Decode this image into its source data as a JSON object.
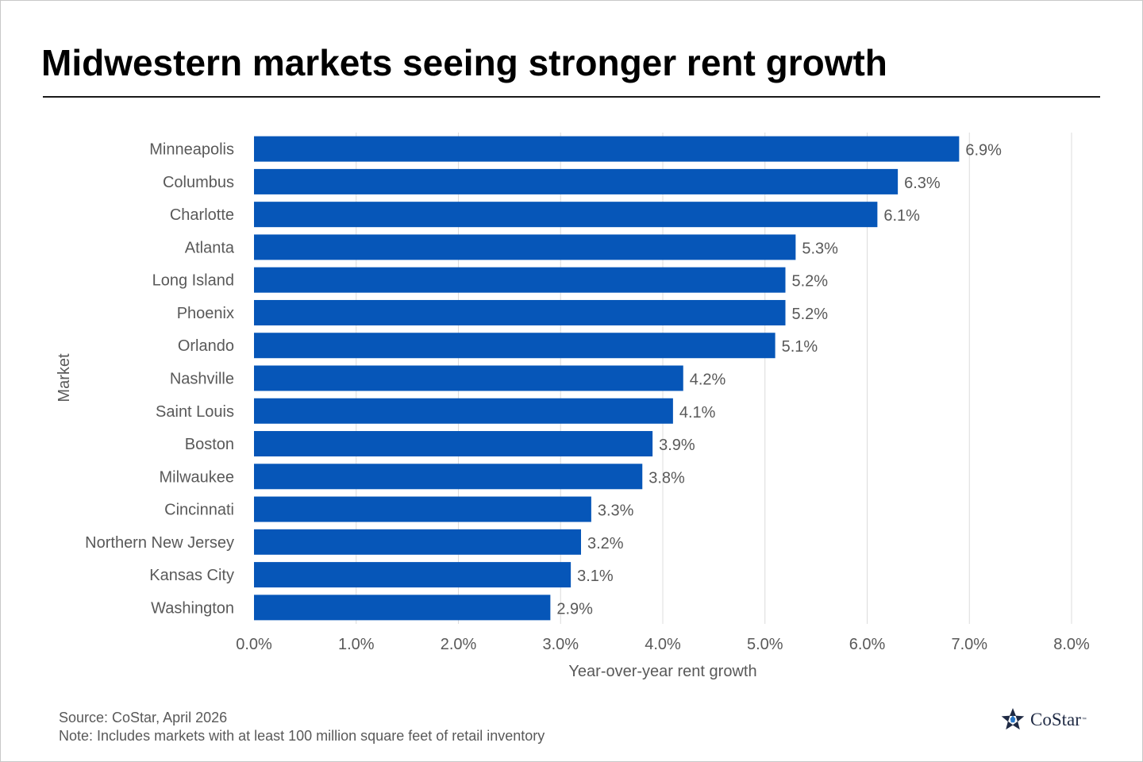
{
  "title": "Midwestern markets seeing stronger rent growth",
  "chart_data": {
    "type": "bar",
    "orientation": "horizontal",
    "categories": [
      "Minneapolis",
      "Columbus",
      "Charlotte",
      "Atlanta",
      "Long Island",
      "Phoenix",
      "Orlando",
      "Nashville",
      "Saint Louis",
      "Boston",
      "Milwaukee",
      "Cincinnati",
      "Northern New Jersey",
      "Kansas City",
      "Washington"
    ],
    "values": [
      6.9,
      6.3,
      6.1,
      5.3,
      5.2,
      5.2,
      5.1,
      4.2,
      4.1,
      3.9,
      3.8,
      3.3,
      3.2,
      3.1,
      2.9
    ],
    "value_labels": [
      "6.9%",
      "6.3%",
      "6.1%",
      "5.3%",
      "5.2%",
      "5.2%",
      "5.1%",
      "4.2%",
      "4.1%",
      "3.9%",
      "3.8%",
      "3.3%",
      "3.2%",
      "3.1%",
      "2.9%"
    ],
    "x_ticks": [
      0,
      1,
      2,
      3,
      4,
      5,
      6,
      7,
      8
    ],
    "x_tick_labels": [
      "0.0%",
      "1.0%",
      "2.0%",
      "3.0%",
      "4.0%",
      "5.0%",
      "6.0%",
      "7.0%",
      "8.0%"
    ],
    "xlim": [
      0,
      8
    ],
    "xlabel": "Year-over-year rent growth",
    "ylabel": "Market",
    "grid": true,
    "bar_color": "#0656b8"
  },
  "footer": {
    "source": "Source: CoStar, April 2026",
    "note": "Note: Includes markets with at least 100 million square feet of retail inventory"
  },
  "logo": {
    "name": "CoStar",
    "tm": "™"
  }
}
